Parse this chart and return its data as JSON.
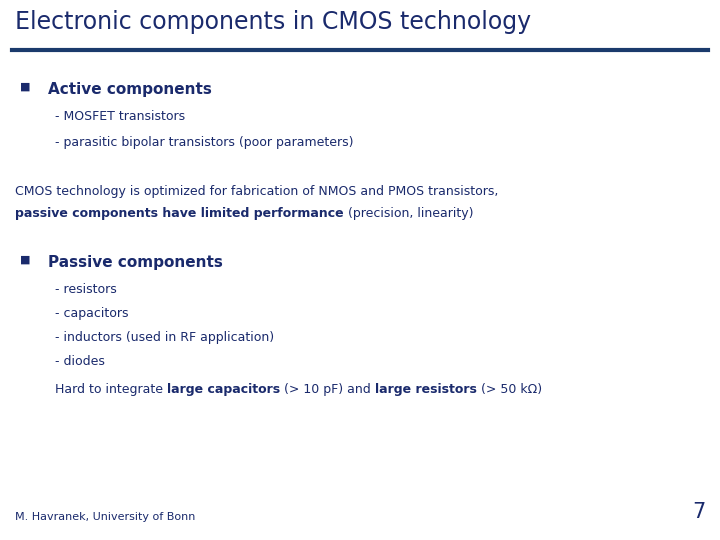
{
  "title": "Electronic components in CMOS technology",
  "title_color": "#1a2a6c",
  "title_fontsize": 17,
  "bg_color": "#ffffff",
  "line_color": "#1a3a6c",
  "dark_blue": "#1a2a6c",
  "bullet1_header": "Active components",
  "bullet1_sub": [
    "- MOSFET transistors",
    "- parasitic bipolar transistors (poor parameters)"
  ],
  "mid_text_line1": "CMOS technology is optimized for fabrication of NMOS and PMOS transistors,",
  "mid_text_line2_bold": "passive components have limited performance",
  "mid_text_line2_normal": " (precision, linearity)",
  "bullet2_header": "Passive components",
  "bullet2_sub": [
    "- resistors",
    "- capacitors",
    "- inductors (used in RF application)",
    "- diodes"
  ],
  "last_line_prefix": "Hard to integrate ",
  "last_line_bold1": "large capacitors",
  "last_line_mid": " (> 10 pF) and ",
  "last_line_bold2": "large resistors",
  "last_line_suffix": " (> 50 kΩ)",
  "footer": "M. Havranek, University of Bonn",
  "page_number": "7",
  "footer_fontsize": 8,
  "body_fontsize": 9,
  "sub_fontsize": 9,
  "header_fontsize": 11
}
